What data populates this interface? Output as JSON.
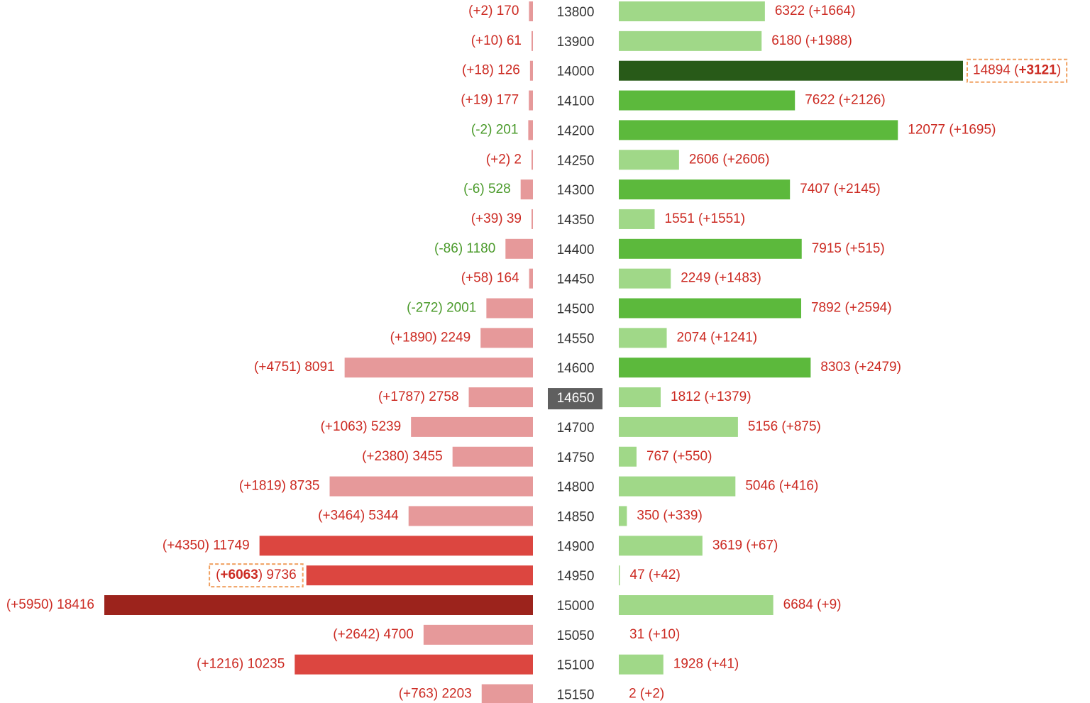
{
  "chart_data": {
    "type": "bar",
    "title": "",
    "xlabel": "",
    "ylabel": "",
    "atm_strike": 14650,
    "highlight": {
      "left_strike": 14950,
      "right_strike": 14000
    },
    "colors": {
      "left_light": "#e6999a",
      "left_medium": "#dc4640",
      "left_dark": "#9c231c",
      "right_light": "#a0d888",
      "right_medium": "#5cb93c",
      "right_dark": "#285a18",
      "label_red": "#cc2a22",
      "label_green": "#4a9a2a",
      "atm_bg": "#5f5f5f",
      "highlight_border": "#f0a060"
    },
    "rows": [
      {
        "strike": "13800",
        "left_value": 170,
        "left_change": 2,
        "left_label": "(+2) 170",
        "right_value": 6322,
        "right_change": 1664,
        "right_label": "6322 (+1664)"
      },
      {
        "strike": "13900",
        "left_value": 61,
        "left_change": 10,
        "left_label": "(+10) 61",
        "right_value": 6180,
        "right_change": 1988,
        "right_label": "6180 (+1988)"
      },
      {
        "strike": "14000",
        "left_value": 126,
        "left_change": 18,
        "left_label": "(+18) 126",
        "right_value": 14894,
        "right_change": 3121,
        "right_label": "14894 (+3121)"
      },
      {
        "strike": "14100",
        "left_value": 177,
        "left_change": 19,
        "left_label": "(+19) 177",
        "right_value": 7622,
        "right_change": 2126,
        "right_label": "7622 (+2126)"
      },
      {
        "strike": "14200",
        "left_value": 201,
        "left_change": -2,
        "left_label": "(-2) 201",
        "right_value": 12077,
        "right_change": 1695,
        "right_label": "12077 (+1695)"
      },
      {
        "strike": "14250",
        "left_value": 2,
        "left_change": 2,
        "left_label": "(+2) 2",
        "right_value": 2606,
        "right_change": 2606,
        "right_label": "2606 (+2606)"
      },
      {
        "strike": "14300",
        "left_value": 528,
        "left_change": -6,
        "left_label": "(-6) 528",
        "right_value": 7407,
        "right_change": 2145,
        "right_label": "7407 (+2145)"
      },
      {
        "strike": "14350",
        "left_value": 39,
        "left_change": 39,
        "left_label": "(+39) 39",
        "right_value": 1551,
        "right_change": 1551,
        "right_label": "1551 (+1551)"
      },
      {
        "strike": "14400",
        "left_value": 1180,
        "left_change": -86,
        "left_label": "(-86) 1180",
        "right_value": 7915,
        "right_change": 515,
        "right_label": "7915 (+515)"
      },
      {
        "strike": "14450",
        "left_value": 164,
        "left_change": 58,
        "left_label": "(+58) 164",
        "right_value": 2249,
        "right_change": 1483,
        "right_label": "2249 (+1483)"
      },
      {
        "strike": "14500",
        "left_value": 2001,
        "left_change": -272,
        "left_label": "(-272) 2001",
        "right_value": 7892,
        "right_change": 2594,
        "right_label": "7892 (+2594)"
      },
      {
        "strike": "14550",
        "left_value": 2249,
        "left_change": 1890,
        "left_label": "(+1890) 2249",
        "right_value": 2074,
        "right_change": 1241,
        "right_label": "2074 (+1241)"
      },
      {
        "strike": "14600",
        "left_value": 8091,
        "left_change": 4751,
        "left_label": "(+4751) 8091",
        "right_value": 8303,
        "right_change": 2479,
        "right_label": "8303 (+2479)"
      },
      {
        "strike": "14650",
        "left_value": 2758,
        "left_change": 1787,
        "left_label": "(+1787) 2758",
        "right_value": 1812,
        "right_change": 1379,
        "right_label": "1812 (+1379)"
      },
      {
        "strike": "14700",
        "left_value": 5239,
        "left_change": 1063,
        "left_label": "(+1063) 5239",
        "right_value": 5156,
        "right_change": 875,
        "right_label": "5156 (+875)"
      },
      {
        "strike": "14750",
        "left_value": 3455,
        "left_change": 2380,
        "left_label": "(+2380) 3455",
        "right_value": 767,
        "right_change": 550,
        "right_label": "767 (+550)"
      },
      {
        "strike": "14800",
        "left_value": 8735,
        "left_change": 1819,
        "left_label": "(+1819) 8735",
        "right_value": 5046,
        "right_change": 416,
        "right_label": "5046 (+416)"
      },
      {
        "strike": "14850",
        "left_value": 5344,
        "left_change": 3464,
        "left_label": "(+3464) 5344",
        "right_value": 350,
        "right_change": 339,
        "right_label": "350 (+339)"
      },
      {
        "strike": "14900",
        "left_value": 11749,
        "left_change": 4350,
        "left_label": "(+4350) 11749",
        "right_value": 3619,
        "right_change": 67,
        "right_label": "3619 (+67)"
      },
      {
        "strike": "14950",
        "left_value": 9736,
        "left_change": 6063,
        "left_label": "(+6063) 9736",
        "right_value": 47,
        "right_change": 42,
        "right_label": "47 (+42)"
      },
      {
        "strike": "15000",
        "left_value": 18416,
        "left_change": 5950,
        "left_label": "(+5950) 18416",
        "right_value": 6684,
        "right_change": 9,
        "right_label": "6684 (+9)"
      },
      {
        "strike": "15050",
        "left_value": 4700,
        "left_change": 2642,
        "left_label": "(+2642) 4700",
        "right_value": 31,
        "right_change": 10,
        "right_label": "31 (+10)"
      },
      {
        "strike": "15100",
        "left_value": 10235,
        "left_change": 1216,
        "left_label": "(+1216) 10235",
        "right_value": 1928,
        "right_change": 41,
        "right_label": "1928 (+41)"
      },
      {
        "strike": "15150",
        "left_value": 2203,
        "left_change": 763,
        "left_label": "(+763) 2203",
        "right_value": 2,
        "right_change": 2,
        "right_label": "2 (+2)"
      }
    ]
  }
}
